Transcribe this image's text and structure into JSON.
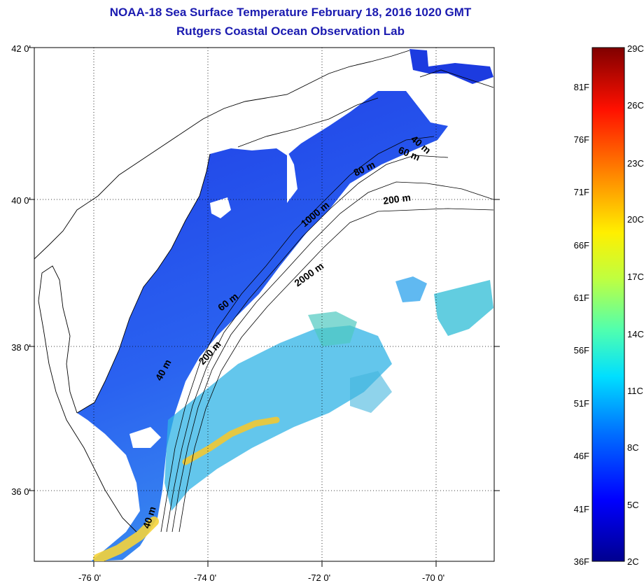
{
  "header": {
    "title_line1": "NOAA-18 Sea Surface Temperature February 18, 2016 1020 GMT",
    "title_line2": "Rutgers Coastal Ocean Observation Lab"
  },
  "axes": {
    "lat_labels": [
      "42 0'",
      "40 0'",
      "38 0'",
      "36 0'"
    ],
    "lon_labels": [
      "-76 0'",
      "-74 0'",
      "-72 0'",
      "-70 0'"
    ]
  },
  "colorbar": {
    "fahrenheit": [
      "81F",
      "76F",
      "71F",
      "66F",
      "61F",
      "56F",
      "51F",
      "46F",
      "41F",
      "36F"
    ],
    "celsius": [
      "29C",
      "26C",
      "23C",
      "20C",
      "17C",
      "14C",
      "11C",
      "8C",
      "5C",
      "2C"
    ],
    "colors": [
      "#00008f",
      "#0000ff",
      "#0070ff",
      "#00dfff",
      "#50ffaf",
      "#bfff40",
      "#ffef00",
      "#ff8000",
      "#ff1000",
      "#800000"
    ]
  },
  "contour_labels": [
    "40 m",
    "60 m",
    "200 m",
    "2000 m",
    "1000 m",
    "80 m",
    "60 m",
    "40 m",
    "200 m",
    "40 m"
  ],
  "palette": {
    "title": "#1a1ab0",
    "water_warm": "#2a6df4",
    "water_cold": "#1b2fd8",
    "gulf_stream": "#f5d33a"
  }
}
